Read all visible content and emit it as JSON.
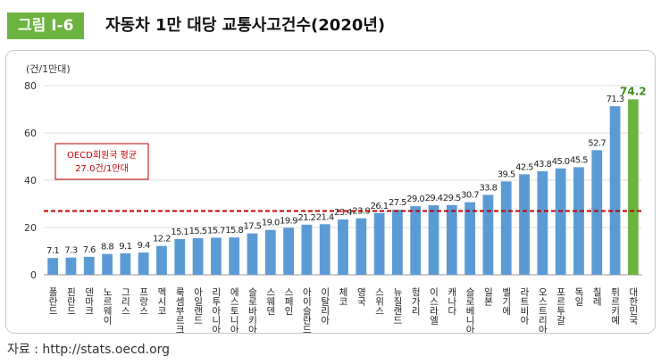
{
  "header": {
    "figure_label": "그림 Ⅰ-6",
    "title": "자동차 1만 대당 교통사고건수(2020년)"
  },
  "source_text": "자료 : http://stats.oecd.org",
  "colors": {
    "bar": "#5b9bd5",
    "highlight_bar": "#6cb33f",
    "avg_line": "#c00000",
    "badge": "#6cb33f"
  },
  "chart_data": {
    "type": "bar",
    "unit_label": "(건/1만대)",
    "ylim": [
      0,
      80
    ],
    "yticks": [
      0,
      20,
      40,
      60,
      80
    ],
    "grid": true,
    "categories": [
      "폴란드",
      "핀란드",
      "덴마크",
      "노르웨이",
      "그리스",
      "프랑스",
      "멕시코",
      "룩셈부르크",
      "아일랜드",
      "리투아니아",
      "에스토니아",
      "슬로바키아",
      "스웨덴",
      "스페인",
      "아이슬란드",
      "이탈리아",
      "체코",
      "영국",
      "스위스",
      "뉴질랜드",
      "헝가리",
      "이스라엘",
      "캐나다",
      "슬로베니아",
      "일본",
      "벨기에",
      "라트비아",
      "오스트리아",
      "포르투갈",
      "독일",
      "칠레",
      "튀르키예",
      "대한민국"
    ],
    "values": [
      7.1,
      7.3,
      7.6,
      8.8,
      9.1,
      9.4,
      12.2,
      15.1,
      15.5,
      15.7,
      15.8,
      17.5,
      19.0,
      19.9,
      21.2,
      21.4,
      23.4,
      23.9,
      26.1,
      27.5,
      29.0,
      29.4,
      29.5,
      30.7,
      33.8,
      39.5,
      42.5,
      43.8,
      45.0,
      45.5,
      52.7,
      71.3,
      74.2
    ],
    "value_labels": [
      "7.1",
      "7.3",
      "7.6",
      "8.8",
      "9.1",
      "9.4",
      "12.2",
      "15.1",
      "15.5",
      "15.7",
      "15.8",
      "17.5",
      "19.0",
      "19.9",
      "21.2",
      "21.4",
      "23.4",
      "23.9",
      "26.1",
      "27.5",
      "29.0",
      "29.4",
      "29.5",
      "30.7",
      "33.8",
      "39.5",
      "42.5",
      "43.8",
      "45.0",
      "45.5",
      "52.7",
      "71.3",
      "74.2"
    ],
    "highlight_category": "대한민국",
    "average": {
      "value": 27.0,
      "label_line1": "OECD회원국 평균",
      "label_line2": "27.0건/1만대"
    }
  }
}
